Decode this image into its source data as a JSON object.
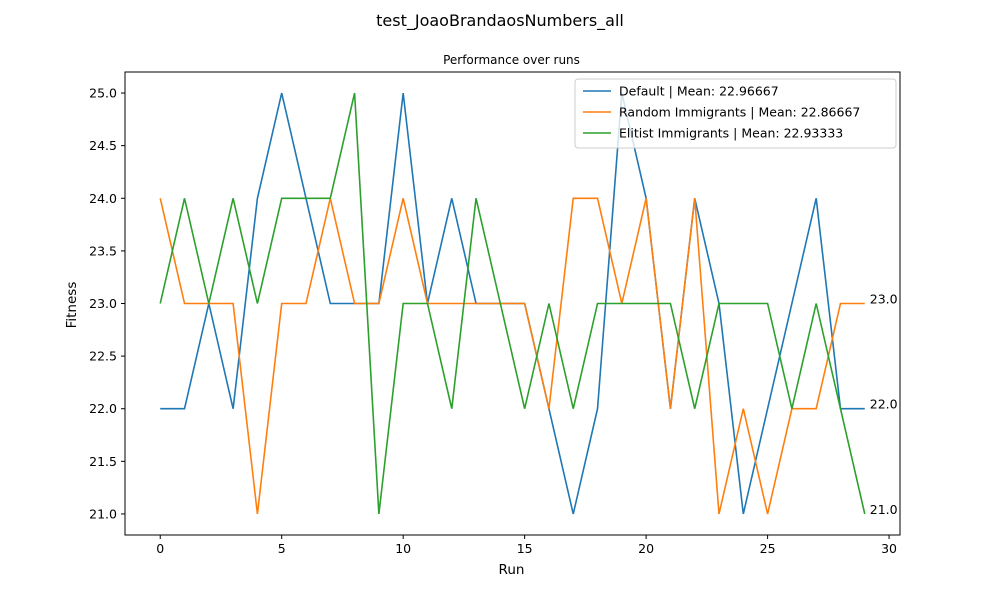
{
  "chart_data": {
    "type": "line",
    "title": "test_JoaoBrandaosNumbers_all",
    "subtitle": "Performance over runs",
    "xlabel": "Run",
    "ylabel": "Fitness",
    "xlim": [
      -1.45,
      30.45
    ],
    "ylim": [
      20.8,
      25.2
    ],
    "xticks": [
      0,
      5,
      10,
      15,
      20,
      25,
      30
    ],
    "xtick_labels": [
      "0",
      "5",
      "10",
      "15",
      "20",
      "25",
      "30"
    ],
    "yticks": [
      21.0,
      21.5,
      22.0,
      22.5,
      23.0,
      23.5,
      24.0,
      24.5,
      25.0
    ],
    "ytick_labels": [
      "21.0",
      "21.5",
      "22.0",
      "22.5",
      "23.0",
      "23.5",
      "24.0",
      "24.5",
      "25.0"
    ],
    "grid": false,
    "legend_position": "top-right",
    "x": [
      0,
      1,
      2,
      3,
      4,
      5,
      6,
      7,
      8,
      9,
      10,
      11,
      12,
      13,
      14,
      15,
      16,
      17,
      18,
      19,
      20,
      21,
      22,
      23,
      24,
      25,
      26,
      27,
      28,
      29
    ],
    "series": [
      {
        "name": "Default | Mean: 22.96667",
        "color": "#1f77b4",
        "values": [
          22,
          22,
          23,
          22,
          24,
          25,
          24,
          23,
          23,
          23,
          25,
          23,
          24,
          23,
          23,
          23,
          22,
          21,
          22,
          25,
          24,
          22,
          24,
          23,
          21,
          22,
          23,
          24,
          22,
          22
        ]
      },
      {
        "name": "Random Immigrants | Mean: 22.86667",
        "color": "#ff7f0e",
        "values": [
          24,
          23,
          23,
          23,
          21,
          23,
          23,
          24,
          23,
          23,
          24,
          23,
          23,
          23,
          23,
          23,
          22,
          24,
          24,
          23,
          24,
          22,
          24,
          21,
          22,
          21,
          22,
          22,
          23,
          23
        ]
      },
      {
        "name": "Elitist Immigrants | Mean: 22.93333",
        "color": "#2ca02c",
        "values": [
          23,
          24,
          23,
          24,
          23,
          24,
          24,
          24,
          25,
          21,
          23,
          23,
          22,
          24,
          23,
          22,
          23,
          22,
          23,
          23,
          23,
          23,
          22,
          23,
          23,
          23,
          22,
          23,
          22,
          21
        ]
      }
    ],
    "end_annotations": [
      {
        "x": 29,
        "y": 23.0,
        "text": "23.0"
      },
      {
        "x": 29,
        "y": 22.0,
        "text": "22.0"
      },
      {
        "x": 29,
        "y": 21.0,
        "text": "21.0"
      }
    ]
  }
}
